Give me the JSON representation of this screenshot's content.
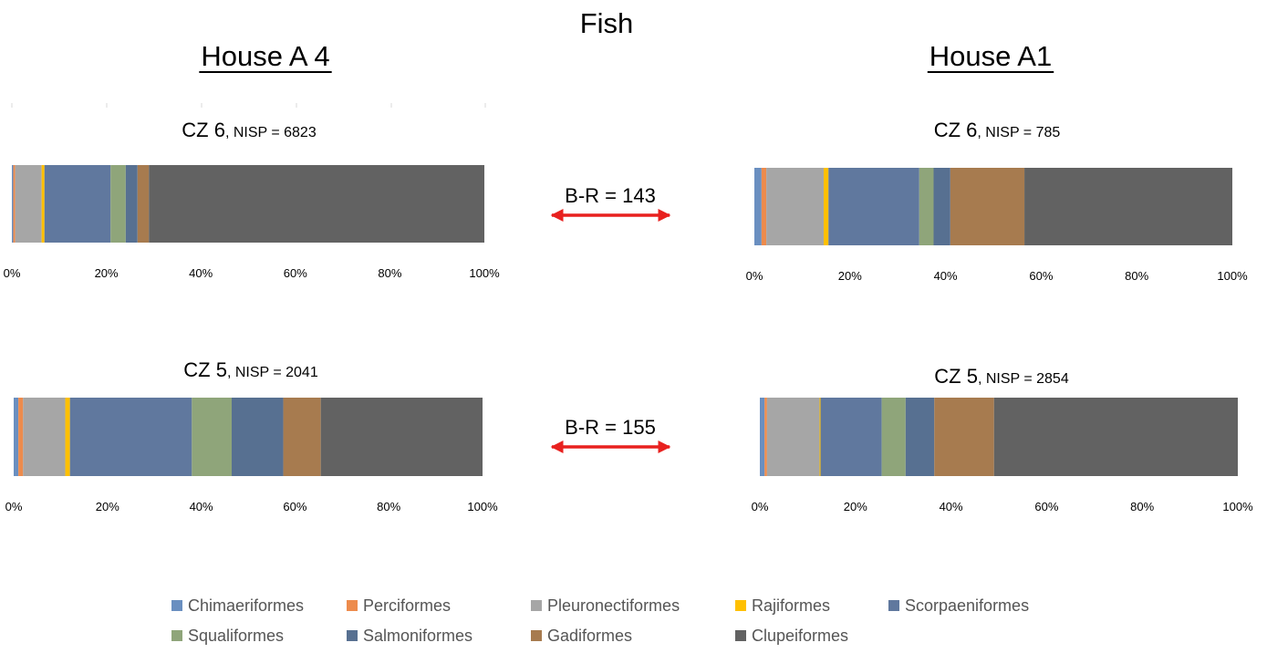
{
  "title": "Fish",
  "houses": [
    {
      "name": "House A 4"
    },
    {
      "name": "House A1"
    }
  ],
  "between_labels": [
    "B-R = 143",
    "B-R = 155"
  ],
  "legend": [
    {
      "name": "Chimaeriformes",
      "color": "#6a8fc0"
    },
    {
      "name": "Perciformes",
      "color": "#ed8b4c"
    },
    {
      "name": "Pleuronectiformes",
      "color": "#a6a6a6"
    },
    {
      "name": "Rajiformes",
      "color": "#ffc000"
    },
    {
      "name": "Scorpaeniformes",
      "color": "#60789e"
    },
    {
      "name": "Squaliformes",
      "color": "#8fa57a"
    },
    {
      "name": "Salmoniformes",
      "color": "#577091"
    },
    {
      "name": "Gadiformes",
      "color": "#a77b4f"
    },
    {
      "name": "Clupeiformes",
      "color": "#626262"
    }
  ],
  "chart_data": [
    {
      "type": "bar",
      "stacked": "percent",
      "house": "House A 4",
      "title": "CZ 6",
      "subtitle": ", NISP = 6823",
      "series": [
        {
          "name": "Chimaeriformes",
          "value": 0.3
        },
        {
          "name": "Perciformes",
          "value": 0.4
        },
        {
          "name": "Pleuronectiformes",
          "value": 5.6
        },
        {
          "name": "Rajiformes",
          "value": 0.6
        },
        {
          "name": "Scorpaeniformes",
          "value": 14.0
        },
        {
          "name": "Squaliformes",
          "value": 3.2
        },
        {
          "name": "Salmoniformes",
          "value": 2.5
        },
        {
          "name": "Gadiformes",
          "value": 2.4
        },
        {
          "name": "Clupeiformes",
          "value": 71.0
        }
      ],
      "xticks": [
        "0%",
        "20%",
        "40%",
        "60%",
        "80%",
        "100%"
      ],
      "xlim": [
        0,
        100
      ]
    },
    {
      "type": "bar",
      "stacked": "percent",
      "house": "House A1",
      "title": "CZ 6",
      "subtitle": ", NISP = 785",
      "series": [
        {
          "name": "Chimaeriformes",
          "value": 1.5
        },
        {
          "name": "Perciformes",
          "value": 1.0
        },
        {
          "name": "Pleuronectiformes",
          "value": 12.0
        },
        {
          "name": "Rajiformes",
          "value": 1.0
        },
        {
          "name": "Scorpaeniformes",
          "value": 19.0
        },
        {
          "name": "Squaliformes",
          "value": 3.0
        },
        {
          "name": "Salmoniformes",
          "value": 3.5
        },
        {
          "name": "Gadiformes",
          "value": 15.5
        },
        {
          "name": "Clupeiformes",
          "value": 43.5
        }
      ],
      "xticks": [
        "0%",
        "20%",
        "40%",
        "60%",
        "80%",
        "100%"
      ],
      "xlim": [
        0,
        100
      ]
    },
    {
      "type": "bar",
      "stacked": "percent",
      "house": "House A 4",
      "title": "CZ 5",
      "subtitle": ", NISP = 2041",
      "series": [
        {
          "name": "Chimaeriformes",
          "value": 1.0
        },
        {
          "name": "Perciformes",
          "value": 1.0
        },
        {
          "name": "Pleuronectiformes",
          "value": 9.0
        },
        {
          "name": "Rajiformes",
          "value": 1.0
        },
        {
          "name": "Scorpaeniformes",
          "value": 26.0
        },
        {
          "name": "Squaliformes",
          "value": 8.5
        },
        {
          "name": "Salmoniformes",
          "value": 11.0
        },
        {
          "name": "Gadiformes",
          "value": 8.0
        },
        {
          "name": "Clupeiformes",
          "value": 34.5
        }
      ],
      "xticks": [
        "0%",
        "20%",
        "40%",
        "60%",
        "80%",
        "100%"
      ],
      "xlim": [
        0,
        100
      ]
    },
    {
      "type": "bar",
      "stacked": "percent",
      "house": "House A1",
      "title": "CZ 5",
      "subtitle": ", NISP = 2854",
      "series": [
        {
          "name": "Chimaeriformes",
          "value": 1.0
        },
        {
          "name": "Perciformes",
          "value": 0.5
        },
        {
          "name": "Pleuronectiformes",
          "value": 11.0
        },
        {
          "name": "Rajiformes",
          "value": 0.2
        },
        {
          "name": "Scorpaeniformes",
          "value": 12.8
        },
        {
          "name": "Squaliformes",
          "value": 5.0
        },
        {
          "name": "Salmoniformes",
          "value": 6.0
        },
        {
          "name": "Gadiformes",
          "value": 12.5
        },
        {
          "name": "Clupeiformes",
          "value": 51.0
        }
      ],
      "xticks": [
        "0%",
        "20%",
        "40%",
        "60%",
        "80%",
        "100%"
      ],
      "xlim": [
        0,
        100
      ]
    }
  ]
}
